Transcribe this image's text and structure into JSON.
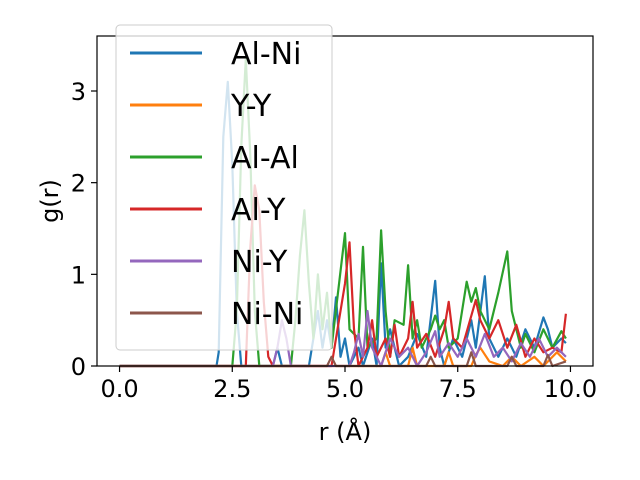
{
  "chart_data": {
    "type": "line",
    "title": "",
    "xlabel": "r (Å)",
    "ylabel": "g(r)",
    "xlim": [
      -0.5,
      10.5
    ],
    "ylim": [
      0,
      3.6
    ],
    "xticks": [
      "0.0",
      "2.5",
      "5.0",
      "7.5",
      "10.0"
    ],
    "yticks": [
      "0",
      "1",
      "2",
      "3"
    ],
    "grid": false,
    "legend_position": "top-left",
    "series": [
      {
        "name": "Al-Ni",
        "color": "#1f77b4",
        "points": [
          [
            0,
            0
          ],
          [
            2.15,
            0
          ],
          [
            2.2,
            0.15
          ],
          [
            2.3,
            2.5
          ],
          [
            2.4,
            3.1
          ],
          [
            2.5,
            2.2
          ],
          [
            2.6,
            0.6
          ],
          [
            2.7,
            0
          ],
          [
            3.4,
            0
          ],
          [
            3.5,
            0.2
          ],
          [
            3.6,
            0
          ],
          [
            4.2,
            0
          ],
          [
            4.3,
            0.3
          ],
          [
            4.4,
            0.6
          ],
          [
            4.5,
            0.2
          ],
          [
            4.6,
            0.5
          ],
          [
            4.7,
            0.2
          ],
          [
            4.8,
            0.75
          ],
          [
            4.9,
            0.1
          ],
          [
            5.0,
            0.3
          ],
          [
            5.1,
            0
          ],
          [
            5.3,
            0.2
          ],
          [
            5.4,
            0
          ],
          [
            5.6,
            0.3
          ],
          [
            5.7,
            0
          ],
          [
            5.8,
            1.12
          ],
          [
            5.9,
            0.2
          ],
          [
            6.0,
            0.4
          ],
          [
            6.2,
            0
          ],
          [
            6.4,
            0.1
          ],
          [
            6.6,
            0.35
          ],
          [
            6.8,
            0.1
          ],
          [
            7.0,
            0.93
          ],
          [
            7.1,
            0.2
          ],
          [
            7.2,
            0
          ],
          [
            7.4,
            0.3
          ],
          [
            7.6,
            0.1
          ],
          [
            7.8,
            0.5
          ],
          [
            7.9,
            0.2
          ],
          [
            8.1,
            0.98
          ],
          [
            8.2,
            0.3
          ],
          [
            8.4,
            0.1
          ],
          [
            8.6,
            0.3
          ],
          [
            8.8,
            0.1
          ],
          [
            9.0,
            0.4
          ],
          [
            9.2,
            0.2
          ],
          [
            9.4,
            0.53
          ],
          [
            9.5,
            0.4
          ],
          [
            9.6,
            0.2
          ],
          [
            9.8,
            0.3
          ],
          [
            9.9,
            0.25
          ]
        ]
      },
      {
        "name": "Y-Y",
        "color": "#ff7f0e",
        "points": [
          [
            0,
            0
          ],
          [
            5.8,
            0
          ],
          [
            5.9,
            0.15
          ],
          [
            6.0,
            0
          ],
          [
            6.4,
            0
          ],
          [
            6.5,
            0.2
          ],
          [
            6.6,
            0
          ],
          [
            7.2,
            0
          ],
          [
            7.3,
            0.15
          ],
          [
            7.4,
            0
          ],
          [
            7.8,
            0
          ],
          [
            7.9,
            0.12
          ],
          [
            8.0,
            0.2
          ],
          [
            8.2,
            0.05
          ],
          [
            8.5,
            0
          ],
          [
            8.7,
            0.1
          ],
          [
            8.9,
            0
          ],
          [
            9.2,
            0.1
          ],
          [
            9.4,
            0
          ],
          [
            9.7,
            0.15
          ],
          [
            9.9,
            0.05
          ]
        ]
      },
      {
        "name": "Al-Al",
        "color": "#2ca02c",
        "points": [
          [
            0,
            0
          ],
          [
            2.5,
            0
          ],
          [
            2.6,
            0.6
          ],
          [
            2.7,
            2.4
          ],
          [
            2.8,
            3.35
          ],
          [
            2.9,
            2.3
          ],
          [
            3.0,
            0.6
          ],
          [
            3.1,
            0
          ],
          [
            3.8,
            0
          ],
          [
            3.9,
            0.5
          ],
          [
            4.0,
            1.2
          ],
          [
            4.1,
            1.7
          ],
          [
            4.2,
            0.9
          ],
          [
            4.3,
            0.3
          ],
          [
            4.4,
            1.0
          ],
          [
            4.5,
            0.4
          ],
          [
            4.6,
            0.8
          ],
          [
            4.7,
            0.2
          ],
          [
            5.0,
            1.45
          ],
          [
            5.1,
            0.4
          ],
          [
            5.3,
            0.3
          ],
          [
            5.4,
            1.3
          ],
          [
            5.5,
            0.2
          ],
          [
            5.7,
            0.3
          ],
          [
            5.8,
            1.48
          ],
          [
            5.9,
            0.6
          ],
          [
            6.0,
            0.1
          ],
          [
            6.1,
            0.5
          ],
          [
            6.3,
            0.45
          ],
          [
            6.4,
            1.1
          ],
          [
            6.5,
            0.3
          ],
          [
            6.6,
            0.5
          ],
          [
            6.7,
            0.2
          ],
          [
            6.9,
            0.4
          ],
          [
            7.0,
            0.55
          ],
          [
            7.1,
            0.4
          ],
          [
            7.2,
            0.5
          ],
          [
            7.3,
            0.2
          ],
          [
            7.5,
            0.3
          ],
          [
            7.7,
            0.92
          ],
          [
            7.8,
            0.7
          ],
          [
            7.9,
            0.85
          ],
          [
            8.0,
            0.6
          ],
          [
            8.2,
            0.4
          ],
          [
            8.4,
            0.8
          ],
          [
            8.6,
            1.25
          ],
          [
            8.7,
            0.6
          ],
          [
            8.9,
            0.2
          ],
          [
            9.0,
            0.35
          ],
          [
            9.2,
            0.15
          ],
          [
            9.4,
            0.4
          ],
          [
            9.6,
            0.2
          ],
          [
            9.8,
            0.38
          ],
          [
            9.9,
            0.3
          ]
        ]
      },
      {
        "name": "Al-Y",
        "color": "#d62728",
        "points": [
          [
            0,
            0
          ],
          [
            2.8,
            0
          ],
          [
            2.9,
            1.3
          ],
          [
            3.0,
            1.97
          ],
          [
            3.1,
            1.7
          ],
          [
            3.2,
            0.7
          ],
          [
            3.3,
            0.1
          ],
          [
            3.4,
            0
          ],
          [
            4.7,
            0
          ],
          [
            4.8,
            0.3
          ],
          [
            4.9,
            0.6
          ],
          [
            5.0,
            0.9
          ],
          [
            5.1,
            1.35
          ],
          [
            5.2,
            0.4
          ],
          [
            5.3,
            0
          ],
          [
            5.5,
            0.2
          ],
          [
            5.6,
            0.5
          ],
          [
            5.7,
            0.1
          ],
          [
            5.9,
            0.3
          ],
          [
            6.0,
            0.1
          ],
          [
            6.1,
            0.45
          ],
          [
            6.2,
            0.1
          ],
          [
            6.4,
            0.3
          ],
          [
            6.5,
            0.7
          ],
          [
            6.6,
            0.2
          ],
          [
            6.8,
            0.35
          ],
          [
            7.0,
            0.1
          ],
          [
            7.2,
            0.4
          ],
          [
            7.3,
            0.7
          ],
          [
            7.4,
            0.3
          ],
          [
            7.6,
            0.2
          ],
          [
            7.9,
            0.72
          ],
          [
            8.0,
            0.5
          ],
          [
            8.2,
            0.3
          ],
          [
            8.4,
            0.5
          ],
          [
            8.6,
            0.2
          ],
          [
            8.8,
            0.45
          ],
          [
            9.0,
            0.1
          ],
          [
            9.2,
            0.3
          ],
          [
            9.4,
            0.15
          ],
          [
            9.6,
            0.2
          ],
          [
            9.8,
            0.15
          ],
          [
            9.9,
            0.57
          ]
        ]
      },
      {
        "name": "Ni-Y",
        "color": "#9467bd",
        "points": [
          [
            0,
            0
          ],
          [
            3.4,
            0
          ],
          [
            3.5,
            0.2
          ],
          [
            3.6,
            0.5
          ],
          [
            3.7,
            0.3
          ],
          [
            3.8,
            0
          ],
          [
            5.1,
            0
          ],
          [
            5.2,
            0.15
          ],
          [
            5.3,
            0.35
          ],
          [
            5.4,
            0.1
          ],
          [
            5.5,
            0.6
          ],
          [
            5.6,
            0.2
          ],
          [
            5.8,
            0
          ],
          [
            6.0,
            0.3
          ],
          [
            6.2,
            0.1
          ],
          [
            6.4,
            0.2
          ],
          [
            6.6,
            0
          ],
          [
            6.8,
            0.15
          ],
          [
            7.0,
            0.38
          ],
          [
            7.1,
            0.1
          ],
          [
            7.3,
            0.25
          ],
          [
            7.5,
            0.1
          ],
          [
            7.7,
            0.3
          ],
          [
            7.9,
            0.1
          ],
          [
            8.1,
            0.35
          ],
          [
            8.3,
            0.1
          ],
          [
            8.5,
            0.2
          ],
          [
            8.7,
            0.05
          ],
          [
            8.9,
            0.25
          ],
          [
            9.1,
            0.1
          ],
          [
            9.3,
            0.3
          ],
          [
            9.5,
            0.1
          ],
          [
            9.7,
            0.2
          ],
          [
            9.9,
            0.1
          ]
        ]
      },
      {
        "name": "Ni-Ni",
        "color": "#8c564b",
        "points": [
          [
            0,
            0
          ],
          [
            4.6,
            0
          ],
          [
            4.7,
            0.1
          ],
          [
            4.8,
            0
          ],
          [
            6.8,
            0
          ],
          [
            6.9,
            0.1
          ],
          [
            7.0,
            0
          ],
          [
            7.7,
            0
          ],
          [
            7.8,
            0.15
          ],
          [
            7.9,
            0
          ],
          [
            8.6,
            0
          ],
          [
            8.7,
            0.1
          ],
          [
            8.8,
            0
          ],
          [
            9.4,
            0
          ],
          [
            9.5,
            0.12
          ],
          [
            9.6,
            0
          ],
          [
            9.9,
            0.05
          ]
        ]
      }
    ]
  }
}
